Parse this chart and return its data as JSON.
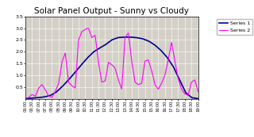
{
  "title": "Solar Panel Output - Sunny vs Cloudy",
  "title_fontsize": 7.5,
  "background_color": "#d4d0c8",
  "fig_background": "#ffffff",
  "ylim": [
    0,
    3.5
  ],
  "yticks": [
    0.5,
    1.0,
    1.5,
    2.0,
    2.5,
    3.0,
    3.5
  ],
  "series1_color": "#00008B",
  "series2_color": "#FF00FF",
  "series1_label": "Series 1",
  "series2_label": "Series 2",
  "series1_lw": 1.2,
  "series2_lw": 0.8,
  "x_labels": [
    "06:00",
    "06:30",
    "07:00",
    "07:30",
    "08:00",
    "08:30",
    "09:00",
    "09:30",
    "10:00",
    "10:30",
    "11:00",
    "11:30",
    "12:00",
    "12:30",
    "13:00",
    "13:30",
    "14:00",
    "14:30",
    "15:00",
    "15:30",
    "16:00",
    "16:30",
    "17:00",
    "17:30",
    "18:00",
    "18:30",
    "19:00"
  ],
  "series1": [
    0.0,
    0.02,
    0.04,
    0.07,
    0.13,
    0.28,
    0.52,
    0.8,
    1.1,
    1.42,
    1.72,
    1.98,
    2.15,
    2.3,
    2.5,
    2.6,
    2.62,
    2.62,
    2.6,
    2.55,
    2.45,
    2.28,
    2.05,
    1.75,
    1.35,
    0.8,
    0.25,
    0.04,
    0.0
  ],
  "series2": [
    0.0,
    0.05,
    0.18,
    0.1,
    0.45,
    0.6,
    0.38,
    0.12,
    0.05,
    0.3,
    0.65,
    1.55,
    1.95,
    0.7,
    0.55,
    0.45,
    2.5,
    2.85,
    2.95,
    3.0,
    2.6,
    2.7,
    1.55,
    0.7,
    0.75,
    1.55,
    1.45,
    1.3,
    0.8,
    0.4,
    2.6,
    2.8,
    1.6,
    0.7,
    0.6,
    0.65,
    1.6,
    1.65,
    1.2,
    0.6,
    0.4,
    0.65,
    1.0,
    1.65,
    2.4,
    1.6,
    0.85,
    0.4,
    0.2,
    0.15,
    0.7,
    0.8,
    0.3
  ]
}
